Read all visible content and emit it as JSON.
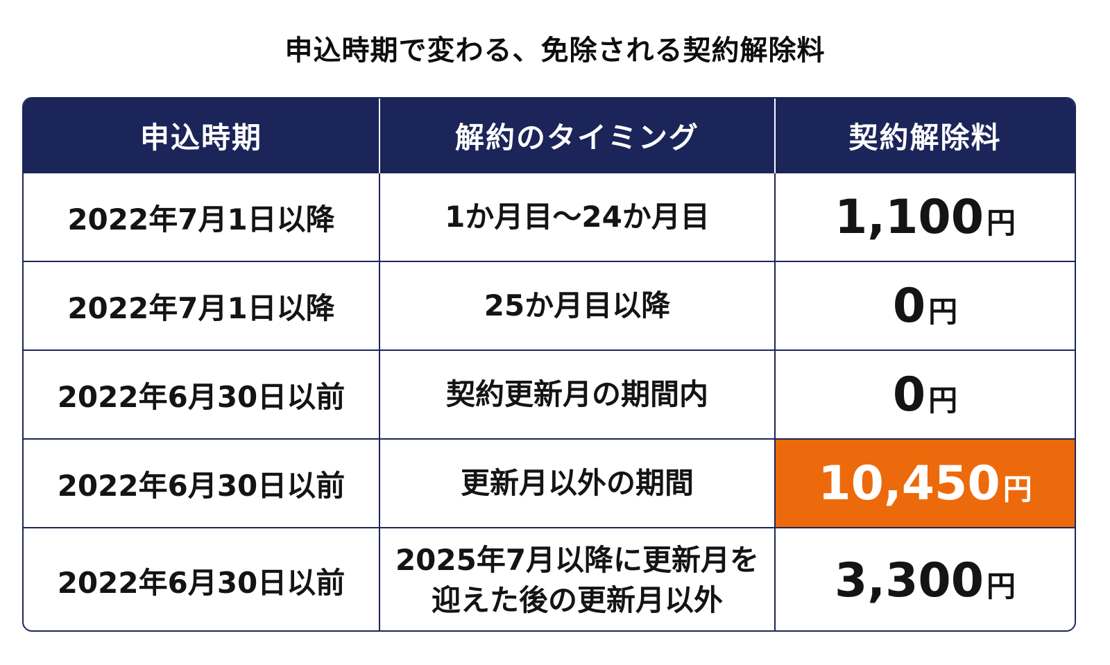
{
  "title": "申込時期で変わる、免除される契約解除料",
  "colors": {
    "header_bg": "#1c2559",
    "header_text": "#ffffff",
    "highlight_bg": "#ec6a0c",
    "highlight_text": "#ffffff"
  },
  "table": {
    "headers": [
      "申込時期",
      "解約のタイミング",
      "契約解除料"
    ],
    "rows": [
      {
        "period": "2022年7月1日以降",
        "timing": "1か月目～24か月目",
        "fee_amount": "1,100",
        "fee_unit": "円",
        "highlight": false
      },
      {
        "period": "2022年7月1日以降",
        "timing": "25か月目以降",
        "fee_amount": "0",
        "fee_unit": "円",
        "highlight": false
      },
      {
        "period": "2022年6月30日以前",
        "timing": "契約更新月の期間内",
        "fee_amount": "0",
        "fee_unit": "円",
        "highlight": false
      },
      {
        "period": "2022年6月30日以前",
        "timing": "更新月以外の期間",
        "fee_amount": "10,450",
        "fee_unit": "円",
        "highlight": true
      },
      {
        "period": "2022年6月30日以前",
        "timing": "2025年7月以降に更新月を\n迎えた後の更新月以外",
        "fee_amount": "3,300",
        "fee_unit": "円",
        "highlight": false
      }
    ]
  }
}
